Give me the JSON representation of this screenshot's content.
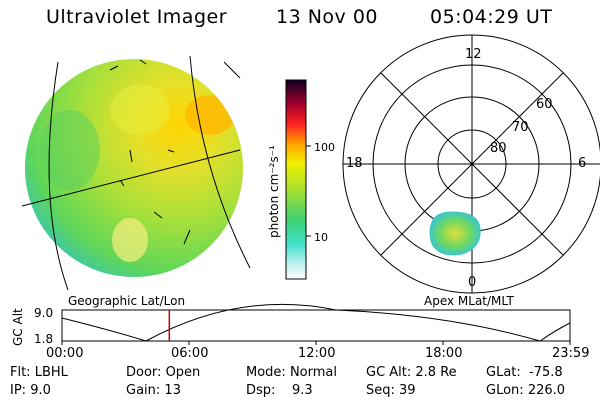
{
  "header": {
    "instrument": "Ultraviolet Imager",
    "date": "13 Nov 00",
    "time": "05:04:29 UT"
  },
  "left_panel": {
    "label": "Geographic Lat/Lon"
  },
  "right_panel": {
    "label": "Apex MLat/MLT",
    "mlt_labels": {
      "top": "12",
      "left": "18",
      "right": "6",
      "bottom": "0"
    },
    "lat_labels": [
      "60",
      "70",
      "80"
    ]
  },
  "colorbar": {
    "unit_label": "photon cm⁻²s⁻¹",
    "ticks": [
      "100",
      "10"
    ]
  },
  "timeline": {
    "axis_title": "GC Alt",
    "y_ticks": [
      "9.0",
      "1.8"
    ],
    "x_ticks": [
      "00:00",
      "06:00",
      "12:00",
      "18:00",
      "23:59"
    ],
    "marker_hour": 5.07,
    "marker_color": "#cc0000"
  },
  "params": {
    "flt": {
      "label": "Flt:",
      "value": "LBHL"
    },
    "ip": {
      "label": "IP:",
      "value": "9.0"
    },
    "door": {
      "label": "Door:",
      "value": "Open"
    },
    "gain": {
      "label": "Gain:",
      "value": "13"
    },
    "mode": {
      "label": "Mode:",
      "value": "Normal"
    },
    "dsp": {
      "label": "Dsp:",
      "value": "9.3"
    },
    "gcalt": {
      "label": "GC Alt:",
      "value": "2.8 Re"
    },
    "seq": {
      "label": "Seq:",
      "value": "39"
    },
    "glat": {
      "label": "GLat:",
      "value": "-75.8"
    },
    "glon": {
      "label": "GLon:",
      "value": "226.0"
    }
  }
}
